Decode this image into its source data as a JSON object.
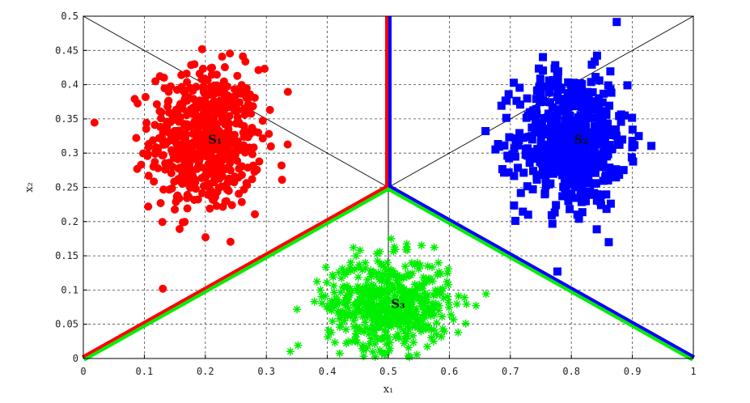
{
  "chart_data": {
    "type": "scatter",
    "title": "",
    "xlabel": "x₁",
    "ylabel": "x₂",
    "xlim": [
      0,
      1
    ],
    "ylim": [
      0,
      0.5
    ],
    "grid": true,
    "x_ticks": [
      "0",
      "0.1",
      "0.2",
      "0.3",
      "0.4",
      "0.5",
      "0.6",
      "0.7",
      "0.8",
      "0.9",
      "1"
    ],
    "y_ticks": [
      "0",
      "0.05",
      "0.1",
      "0.15",
      "0.2",
      "0.25",
      "0.3",
      "0.35",
      "0.4",
      "0.45",
      "0.5"
    ],
    "clusters": [
      {
        "label": "S₁",
        "marker": "circle",
        "color": "#ff0000",
        "center": [
          0.2,
          0.32
        ],
        "spread": [
          0.045,
          0.052
        ],
        "count": 600
      },
      {
        "label": "S₂",
        "marker": "square",
        "color": "#0000ff",
        "center": [
          0.8,
          0.32
        ],
        "spread": [
          0.045,
          0.05
        ],
        "count": 600
      },
      {
        "label": "S₃",
        "marker": "star",
        "color": "#00ee00",
        "center": [
          0.5,
          0.08
        ],
        "spread": [
          0.05,
          0.033
        ],
        "count": 600
      }
    ],
    "boundaries": [
      {
        "name": "S1-S2 boundary",
        "points": [
          [
            0.5,
            0.25
          ],
          [
            0.5,
            0.5
          ]
        ],
        "colors": [
          "#ff0000",
          "#0000ff"
        ]
      },
      {
        "name": "S1-S3 boundary",
        "points": [
          [
            0,
            0
          ],
          [
            0.5,
            0.25
          ]
        ],
        "colors": [
          "#ff0000",
          "#00ee00"
        ]
      },
      {
        "name": "S2-S3 boundary",
        "points": [
          [
            0.5,
            0.25
          ],
          [
            1,
            0
          ]
        ],
        "colors": [
          "#0000ff",
          "#00ee00"
        ]
      }
    ],
    "guide_lines": [
      {
        "points": [
          [
            0,
            0.5
          ],
          [
            0.5,
            0.25
          ]
        ]
      },
      {
        "points": [
          [
            0.5,
            0.25
          ],
          [
            1,
            0.5
          ]
        ]
      },
      {
        "points": [
          [
            0.5,
            0.25
          ],
          [
            0.5,
            0
          ]
        ]
      }
    ]
  }
}
